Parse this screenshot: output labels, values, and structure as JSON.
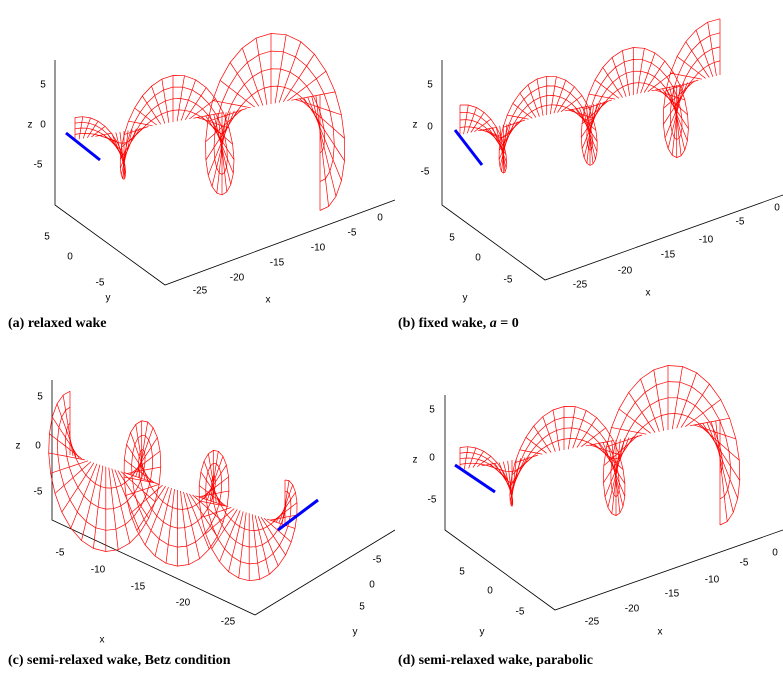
{
  "panels": [
    {
      "caption": "(a) relaxed wake",
      "z_label": "z",
      "y_label": "y",
      "x_label": "x",
      "z_ticks": [
        5,
        0,
        -5
      ],
      "y_ticks": [
        5,
        0,
        -5
      ],
      "x_ticks": [
        0,
        -5,
        -10,
        -15,
        -20,
        -25
      ]
    },
    {
      "caption": "(b) fixed wake,",
      "caption_var": "a",
      "caption_tail": "= 0",
      "z_label": "z",
      "y_label": "y",
      "x_label": "x",
      "z_ticks": [
        5,
        0,
        -5
      ],
      "y_ticks": [
        5,
        0,
        -5
      ],
      "x_ticks": [
        0,
        -5,
        -10,
        -15,
        -20,
        -25
      ]
    },
    {
      "caption": "(c) semi-relaxed wake, Betz condition",
      "z_label": "z",
      "y_label": "y",
      "x_label": "x",
      "z_ticks": [
        5,
        0,
        -5
      ],
      "y_ticks": [
        -5,
        0,
        5
      ],
      "x_ticks": [
        -5,
        -10,
        -15,
        -20,
        -25
      ]
    },
    {
      "caption": "(d) semi-relaxed wake, parabolic",
      "z_label": "z",
      "y_label": "y",
      "x_label": "x",
      "z_ticks": [
        5,
        0,
        -5
      ],
      "y_ticks": [
        5,
        0,
        -5
      ],
      "x_ticks": [
        0,
        -5,
        -10,
        -15,
        -20,
        -25
      ]
    }
  ]
}
